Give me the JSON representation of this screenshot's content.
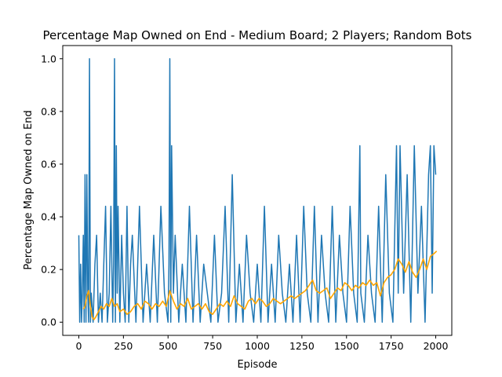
{
  "chart_data": {
    "type": "line",
    "title": "Percentage Map Owned on End - Medium Board; 2 Players; Random Bots",
    "xlabel": "Episode",
    "ylabel": "Percentage Map Owned on End",
    "xlim": [
      -90,
      2090
    ],
    "ylim": [
      -0.05,
      1.05
    ],
    "xticks": [
      0,
      250,
      500,
      750,
      1000,
      1250,
      1500,
      1750,
      2000
    ],
    "xtick_labels": [
      "0",
      "250",
      "500",
      "750",
      "1000",
      "1250",
      "1500",
      "1750",
      "2000"
    ],
    "yticks": [
      0.0,
      0.2,
      0.4,
      0.6,
      0.8,
      1.0
    ],
    "ytick_labels": [
      "0.0",
      "0.2",
      "0.4",
      "0.6",
      "0.8",
      "1.0"
    ],
    "grid": false,
    "legend": "none",
    "series": [
      {
        "name": "",
        "color": "#1f77b4",
        "description_role": "raw per-episode value",
        "x": [
          0,
          5,
          10,
          15,
          20,
          25,
          30,
          35,
          40,
          45,
          50,
          55,
          60,
          65,
          70,
          80,
          90,
          100,
          110,
          120,
          130,
          140,
          150,
          160,
          170,
          180,
          190,
          195,
          200,
          205,
          210,
          215,
          220,
          230,
          240,
          250,
          260,
          270,
          280,
          290,
          300,
          320,
          340,
          360,
          380,
          400,
          420,
          440,
          460,
          480,
          500,
          505,
          510,
          515,
          520,
          530,
          540,
          560,
          580,
          600,
          620,
          640,
          660,
          680,
          700,
          720,
          740,
          760,
          780,
          800,
          820,
          840,
          860,
          880,
          900,
          920,
          940,
          960,
          980,
          1000,
          1020,
          1040,
          1060,
          1080,
          1100,
          1120,
          1140,
          1160,
          1180,
          1200,
          1220,
          1240,
          1260,
          1280,
          1300,
          1320,
          1340,
          1360,
          1380,
          1400,
          1420,
          1440,
          1460,
          1480,
          1500,
          1520,
          1540,
          1560,
          1575,
          1580,
          1600,
          1620,
          1640,
          1660,
          1680,
          1700,
          1720,
          1740,
          1760,
          1780,
          1790,
          1800,
          1820,
          1840,
          1860,
          1880,
          1900,
          1920,
          1940,
          1960,
          1970,
          1980,
          1990,
          2000
        ],
        "values": [
          0.33,
          0.0,
          0.22,
          0.0,
          0.11,
          0.33,
          0.0,
          0.56,
          0.0,
          0.56,
          0.11,
          0.0,
          1.0,
          0.0,
          0.11,
          0.0,
          0.22,
          0.33,
          0.0,
          0.11,
          0.0,
          0.22,
          0.44,
          0.0,
          0.11,
          0.44,
          0.0,
          0.22,
          1.0,
          0.0,
          0.67,
          0.11,
          0.44,
          0.0,
          0.33,
          0.11,
          0.0,
          0.44,
          0.0,
          0.22,
          0.33,
          0.0,
          0.44,
          0.0,
          0.22,
          0.0,
          0.33,
          0.0,
          0.44,
          0.11,
          0.0,
          0.22,
          1.0,
          0.0,
          0.67,
          0.11,
          0.33,
          0.0,
          0.22,
          0.0,
          0.44,
          0.0,
          0.33,
          0.0,
          0.22,
          0.11,
          0.0,
          0.33,
          0.0,
          0.11,
          0.44,
          0.0,
          0.56,
          0.0,
          0.22,
          0.0,
          0.33,
          0.11,
          0.0,
          0.22,
          0.0,
          0.44,
          0.0,
          0.22,
          0.0,
          0.33,
          0.11,
          0.0,
          0.22,
          0.0,
          0.33,
          0.0,
          0.44,
          0.11,
          0.0,
          0.44,
          0.0,
          0.33,
          0.11,
          0.0,
          0.44,
          0.0,
          0.33,
          0.11,
          0.0,
          0.44,
          0.11,
          0.0,
          0.67,
          0.11,
          0.0,
          0.33,
          0.11,
          0.0,
          0.44,
          0.0,
          0.56,
          0.11,
          0.0,
          0.67,
          0.11,
          0.67,
          0.11,
          0.56,
          0.0,
          0.67,
          0.11,
          0.44,
          0.0,
          0.56,
          0.67,
          0.11,
          0.67,
          0.56
        ]
      },
      {
        "name": "",
        "color": "#ffa500",
        "description_role": "moving average",
        "x": [
          25,
          35,
          45,
          55,
          65,
          75,
          85,
          95,
          110,
          125,
          140,
          155,
          170,
          185,
          200,
          215,
          230,
          250,
          270,
          290,
          310,
          330,
          350,
          370,
          390,
          410,
          430,
          450,
          470,
          490,
          510,
          530,
          550,
          570,
          590,
          610,
          630,
          650,
          670,
          690,
          710,
          730,
          750,
          770,
          790,
          810,
          830,
          850,
          870,
          890,
          910,
          930,
          950,
          970,
          990,
          1010,
          1030,
          1050,
          1070,
          1090,
          1110,
          1130,
          1150,
          1170,
          1190,
          1210,
          1230,
          1250,
          1270,
          1290,
          1310,
          1330,
          1350,
          1370,
          1390,
          1410,
          1430,
          1450,
          1470,
          1490,
          1510,
          1530,
          1550,
          1570,
          1590,
          1610,
          1630,
          1650,
          1670,
          1690,
          1710,
          1730,
          1750,
          1770,
          1790,
          1810,
          1830,
          1850,
          1870,
          1890,
          1910,
          1930,
          1950,
          1970,
          1990,
          2005
        ],
        "values": [
          0.05,
          0.06,
          0.1,
          0.12,
          0.06,
          0.02,
          0.01,
          0.02,
          0.04,
          0.06,
          0.05,
          0.07,
          0.06,
          0.09,
          0.06,
          0.07,
          0.04,
          0.05,
          0.03,
          0.04,
          0.06,
          0.07,
          0.05,
          0.08,
          0.07,
          0.05,
          0.07,
          0.06,
          0.08,
          0.06,
          0.12,
          0.08,
          0.05,
          0.07,
          0.06,
          0.09,
          0.05,
          0.06,
          0.07,
          0.05,
          0.07,
          0.04,
          0.03,
          0.05,
          0.07,
          0.06,
          0.08,
          0.06,
          0.1,
          0.07,
          0.06,
          0.05,
          0.08,
          0.09,
          0.07,
          0.09,
          0.08,
          0.06,
          0.07,
          0.09,
          0.08,
          0.07,
          0.08,
          0.09,
          0.1,
          0.09,
          0.1,
          0.11,
          0.12,
          0.14,
          0.16,
          0.12,
          0.11,
          0.12,
          0.13,
          0.09,
          0.11,
          0.13,
          0.12,
          0.15,
          0.14,
          0.12,
          0.14,
          0.13,
          0.15,
          0.14,
          0.16,
          0.14,
          0.15,
          0.1,
          0.15,
          0.17,
          0.18,
          0.2,
          0.24,
          0.22,
          0.19,
          0.23,
          0.19,
          0.17,
          0.2,
          0.24,
          0.2,
          0.25,
          0.26,
          0.27
        ]
      }
    ]
  }
}
